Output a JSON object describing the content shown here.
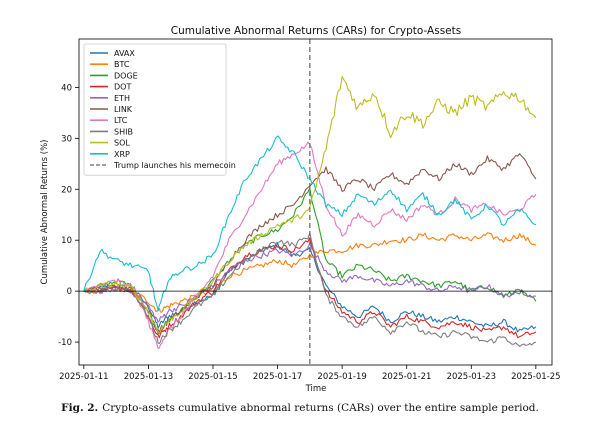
{
  "caption": {
    "label": "Fig. 2.",
    "text": "Crypto-assets cumulative abnormal returns (CARs) over the entire sample period."
  },
  "chart_data": {
    "type": "line",
    "title": "Cumulative Abnormal Returns (CARs) for Crypto-Assets",
    "xlabel": "Time",
    "ylabel": "Cumulative Abnormal Returns (%)",
    "x_ticks": [
      "2025-01-11",
      "2025-01-13",
      "2025-01-15",
      "2025-01-17",
      "2025-01-19",
      "2025-01-21",
      "2025-01-23",
      "2025-01-25"
    ],
    "x_tick_days": [
      11,
      13,
      15,
      17,
      19,
      21,
      23,
      25
    ],
    "xlim": [
      10.85,
      25.5
    ],
    "ylim": [
      -14.5,
      49.5
    ],
    "y_ticks": [
      -10,
      0,
      10,
      20,
      30,
      40
    ],
    "zero_line": 0,
    "grid": false,
    "legend_position": "top-left",
    "event": {
      "day": 18.0,
      "label": "Trump launches his memecoin",
      "style": "dashed",
      "color": "#666666"
    },
    "series": [
      {
        "name": "AVAX",
        "color": "#1f77b4",
        "x": [
          11,
          11.5,
          12,
          12.5,
          13,
          13.3,
          13.6,
          14,
          14.5,
          15,
          15.5,
          16,
          16.5,
          17,
          17.5,
          18,
          18.5,
          19,
          19.5,
          20,
          20.5,
          21,
          21.5,
          22,
          22.5,
          23,
          23.5,
          24,
          24.5,
          25
        ],
        "y": [
          0,
          0.5,
          1,
          0.5,
          -3,
          -7,
          -5,
          -4,
          -2,
          -1,
          4,
          6,
          8,
          9,
          7,
          8,
          1,
          -3,
          -5,
          -3,
          -6,
          -4,
          -5,
          -6,
          -5,
          -6,
          -7,
          -6,
          -8,
          -7
        ]
      },
      {
        "name": "BTC",
        "color": "#ff7f0e",
        "x": [
          11,
          11.5,
          12,
          12.5,
          13,
          13.3,
          13.6,
          14,
          14.5,
          15,
          15.5,
          16,
          16.5,
          17,
          17.5,
          18,
          18.5,
          19,
          19.5,
          20,
          20.5,
          21,
          21.5,
          22,
          22.5,
          23,
          23.5,
          24,
          24.5,
          25
        ],
        "y": [
          0,
          0,
          0.5,
          0,
          -2,
          -4,
          -3,
          -2,
          -1,
          0,
          3,
          4,
          5,
          6,
          5,
          7,
          8,
          8,
          9,
          9,
          10,
          10,
          11,
          10,
          11,
          10,
          11,
          10,
          11,
          9
        ]
      },
      {
        "name": "DOGE",
        "color": "#2ca02c",
        "x": [
          11,
          11.5,
          12,
          12.5,
          13,
          13.3,
          13.6,
          14,
          14.5,
          15,
          15.5,
          16,
          16.5,
          17,
          17.5,
          18,
          18.5,
          19,
          19.5,
          20,
          20.5,
          21,
          21.5,
          22,
          22.5,
          23,
          23.5,
          24,
          24.5,
          25
        ],
        "y": [
          0,
          1,
          2,
          1,
          -4,
          -8,
          -6,
          -4,
          -1,
          2,
          6,
          9,
          11,
          12,
          15,
          20,
          6,
          3,
          5,
          4,
          2,
          3,
          2,
          1,
          2,
          0,
          1,
          -1,
          0,
          -2
        ]
      },
      {
        "name": "DOT",
        "color": "#d62728",
        "x": [
          11,
          11.5,
          12,
          12.5,
          13,
          13.3,
          13.6,
          14,
          14.5,
          15,
          15.5,
          16,
          16.5,
          17,
          17.5,
          18,
          18.5,
          19,
          19.5,
          20,
          20.5,
          21,
          21.5,
          22,
          22.5,
          23,
          23.5,
          24,
          24.5,
          25
        ],
        "y": [
          0,
          0.5,
          1,
          0,
          -5,
          -9,
          -7,
          -5,
          -2,
          0,
          4,
          7,
          8,
          9,
          8,
          10,
          0,
          -4,
          -6,
          -4,
          -7,
          -5,
          -6,
          -7,
          -6,
          -7,
          -8,
          -7,
          -9,
          -8
        ]
      },
      {
        "name": "ETH",
        "color": "#9467bd",
        "x": [
          11,
          11.5,
          12,
          12.5,
          13,
          13.3,
          13.6,
          14,
          14.5,
          15,
          15.5,
          16,
          16.5,
          17,
          17.5,
          18,
          18.5,
          19,
          19.5,
          20,
          20.5,
          21,
          21.5,
          22,
          22.5,
          23,
          23.5,
          24,
          24.5,
          25
        ],
        "y": [
          0,
          0,
          0.5,
          0,
          -3,
          -6,
          -4,
          -3,
          -1,
          1,
          4,
          6,
          7,
          8,
          7,
          9,
          4,
          2,
          3,
          2,
          1,
          2,
          1,
          0,
          1,
          0,
          1,
          -1,
          0,
          -1
        ]
      },
      {
        "name": "LINK",
        "color": "#8c564b",
        "x": [
          11,
          11.5,
          12,
          12.5,
          13,
          13.3,
          13.6,
          14,
          14.5,
          15,
          15.5,
          16,
          16.5,
          17,
          17.5,
          18,
          18.5,
          19,
          19.5,
          20,
          20.5,
          21,
          21.5,
          22,
          22.5,
          23,
          23.5,
          24,
          24.5,
          25
        ],
        "y": [
          0,
          0.5,
          1,
          0,
          -4,
          -8,
          -6,
          -4,
          -1,
          1,
          6,
          10,
          13,
          15,
          17,
          21,
          24,
          20,
          22,
          20,
          23,
          21,
          24,
          22,
          25,
          23,
          26,
          24,
          27,
          22
        ]
      },
      {
        "name": "LTC",
        "color": "#e377c2",
        "x": [
          11,
          11.5,
          12,
          12.5,
          13,
          13.3,
          13.6,
          14,
          14.5,
          15,
          15.5,
          16,
          16.5,
          17,
          17.5,
          18,
          18.5,
          19,
          19.5,
          20,
          20.5,
          21,
          21.5,
          22,
          22.5,
          23,
          23.5,
          24,
          24.5,
          25
        ],
        "y": [
          0,
          1,
          2,
          1,
          -6,
          -11,
          -8,
          -5,
          -1,
          3,
          10,
          15,
          20,
          25,
          27,
          29,
          17,
          11,
          15,
          13,
          16,
          14,
          17,
          15,
          18,
          16,
          17,
          15,
          16,
          19
        ]
      },
      {
        "name": "SHIB",
        "color": "#7f7f7f",
        "x": [
          11,
          11.5,
          12,
          12.5,
          13,
          13.3,
          13.6,
          14,
          14.5,
          15,
          15.5,
          16,
          16.5,
          17,
          17.5,
          18,
          18.5,
          19,
          19.5,
          20,
          20.5,
          21,
          21.5,
          22,
          22.5,
          23,
          23.5,
          24,
          24.5,
          25
        ],
        "y": [
          0,
          0,
          0.5,
          0,
          -5,
          -10,
          -8,
          -6,
          -3,
          -1,
          3,
          6,
          8,
          10,
          9,
          11,
          -1,
          -5,
          -7,
          -5,
          -8,
          -6,
          -8,
          -9,
          -8,
          -9,
          -10,
          -9,
          -11,
          -10
        ]
      },
      {
        "name": "SOL",
        "color": "#bcbd22",
        "x": [
          11,
          11.5,
          12,
          12.5,
          13,
          13.3,
          13.6,
          14,
          14.5,
          15,
          15.5,
          16,
          16.5,
          17,
          17.5,
          18,
          18.5,
          19,
          19.5,
          20,
          20.5,
          21,
          21.5,
          22,
          22.5,
          23,
          23.5,
          24,
          24.5,
          25
        ],
        "y": [
          0,
          1,
          1.5,
          0.5,
          -4,
          -8,
          -6,
          -4,
          -1,
          2,
          6,
          9,
          11,
          13,
          14,
          16,
          28,
          42,
          36,
          39,
          31,
          35,
          33,
          37,
          35,
          38,
          36,
          39,
          38,
          34
        ]
      },
      {
        "name": "XRP",
        "color": "#17becf",
        "x": [
          11,
          11.5,
          12,
          12.5,
          13,
          13.3,
          13.6,
          14,
          14.5,
          15,
          15.5,
          16,
          16.5,
          17,
          17.5,
          18,
          18.5,
          19,
          19.5,
          20,
          20.5,
          21,
          21.5,
          22,
          22.5,
          23,
          23.5,
          24,
          24.5,
          25
        ],
        "y": [
          0,
          8,
          6,
          5,
          4,
          -4,
          2,
          4,
          5,
          7,
          15,
          22,
          26,
          30,
          27,
          22,
          17,
          15,
          19,
          17,
          20,
          16,
          19,
          15,
          18,
          14,
          17,
          13,
          16,
          13
        ]
      }
    ]
  }
}
